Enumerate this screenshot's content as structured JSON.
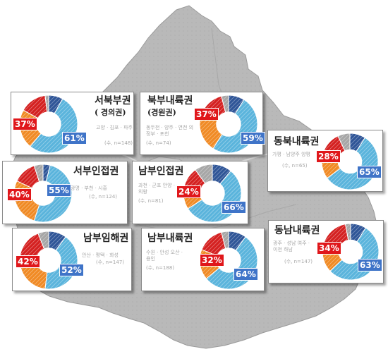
{
  "colors": {
    "map_fill": "#b7b7b7",
    "map_inner": "#cfcfcf",
    "dark_blue": "#2f5597",
    "light_blue": "#5ab4dc",
    "orange": "#f08a24",
    "red": "#d42020",
    "gray": "#a6a6a6",
    "label_red": "#e0171b",
    "label_blue": "#3f74c8"
  },
  "chart_data": [
    {
      "type": "pie",
      "style": "donut",
      "title": "서북부권",
      "subtitle": "( 경의권)",
      "cities": "고양 · 김포 · 파주",
      "n_label": "(수, n=148)",
      "segments": [
        {
          "color_key": "dark_blue",
          "value": 8
        },
        {
          "color_key": "light_blue",
          "value": 53
        },
        {
          "color_key": "orange",
          "value": 22
        },
        {
          "color_key": "red",
          "value": 15
        },
        {
          "color_key": "gray",
          "value": 2
        }
      ],
      "labels": {
        "red": "37%",
        "blue": "61%"
      }
    },
    {
      "type": "pie",
      "style": "donut",
      "title": "북부내륙권",
      "subtitle": "(경원권)",
      "cities": "동두천 · 양주 · 연천 의정부 · 포천",
      "n_label": "(수, n=74)",
      "segments": [
        {
          "color_key": "dark_blue",
          "value": 9
        },
        {
          "color_key": "light_blue",
          "value": 50
        },
        {
          "color_key": "orange",
          "value": 21
        },
        {
          "color_key": "red",
          "value": 16
        },
        {
          "color_key": "gray",
          "value": 4
        }
      ],
      "labels": {
        "red": "37%",
        "blue": "59%"
      }
    },
    {
      "type": "pie",
      "style": "donut",
      "title": "동북내륙권",
      "subtitle": "",
      "cities": "가평 · 남양주 양평",
      "n_label": "(수, n=65)",
      "segments": [
        {
          "color_key": "dark_blue",
          "value": 9
        },
        {
          "color_key": "light_blue",
          "value": 56
        },
        {
          "color_key": "orange",
          "value": 14
        },
        {
          "color_key": "red",
          "value": 14
        },
        {
          "color_key": "gray",
          "value": 7
        }
      ],
      "labels": {
        "red": "28%",
        "blue": "65%"
      }
    },
    {
      "type": "pie",
      "style": "donut",
      "title": "서부인접권",
      "subtitle": "",
      "cities": "광명 · 부천 · 시흥",
      "n_label": "(수, n=124)",
      "segments": [
        {
          "color_key": "dark_blue",
          "value": 4
        },
        {
          "color_key": "light_blue",
          "value": 51
        },
        {
          "color_key": "orange",
          "value": 27
        },
        {
          "color_key": "red",
          "value": 13
        },
        {
          "color_key": "gray",
          "value": 5
        }
      ],
      "labels": {
        "red": "40%",
        "blue": "55%"
      }
    },
    {
      "type": "pie",
      "style": "donut",
      "title": "남부인접권",
      "subtitle": "",
      "cities": "과천 · 군포 안양 · 의왕",
      "n_label": "(수, n=81)",
      "segments": [
        {
          "color_key": "dark_blue",
          "value": 11
        },
        {
          "color_key": "light_blue",
          "value": 55
        },
        {
          "color_key": "orange",
          "value": 13
        },
        {
          "color_key": "red",
          "value": 11
        },
        {
          "color_key": "gray",
          "value": 10
        }
      ],
      "labels": {
        "red": "24%",
        "blue": "66%"
      }
    },
    {
      "type": "pie",
      "style": "donut",
      "title": "남부임해권",
      "subtitle": "",
      "cities": "안산 · 평택 · 화성",
      "n_label": "(수, n=147)",
      "segments": [
        {
          "color_key": "dark_blue",
          "value": 10
        },
        {
          "color_key": "light_blue",
          "value": 42
        },
        {
          "color_key": "orange",
          "value": 22
        },
        {
          "color_key": "red",
          "value": 20
        },
        {
          "color_key": "gray",
          "value": 6
        }
      ],
      "labels": {
        "red": "42%",
        "blue": "52%"
      }
    },
    {
      "type": "pie",
      "style": "donut",
      "title": "남부내륙권",
      "subtitle": "",
      "cities": "수원 · 안성 오산 · 용인",
      "n_label": "(수, n=188)",
      "segments": [
        {
          "color_key": "dark_blue",
          "value": 10
        },
        {
          "color_key": "light_blue",
          "value": 54
        },
        {
          "color_key": "orange",
          "value": 17
        },
        {
          "color_key": "red",
          "value": 15
        },
        {
          "color_key": "gray",
          "value": 4
        }
      ],
      "labels": {
        "red": "32%",
        "blue": "64%"
      }
    },
    {
      "type": "pie",
      "style": "donut",
      "title": "동남내륙권",
      "subtitle": "",
      "cities": "광주 · 성남 여주 · 이천 하남",
      "n_label": "(수, n=147)",
      "segments": [
        {
          "color_key": "dark_blue",
          "value": 9
        },
        {
          "color_key": "light_blue",
          "value": 54
        },
        {
          "color_key": "orange",
          "value": 15
        },
        {
          "color_key": "red",
          "value": 19
        },
        {
          "color_key": "gray",
          "value": 3
        }
      ],
      "labels": {
        "red": "34%",
        "blue": "63%"
      }
    }
  ]
}
